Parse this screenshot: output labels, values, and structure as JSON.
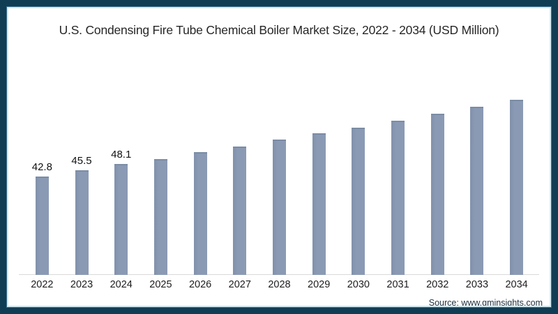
{
  "title": "U.S. Condensing Fire Tube Chemical Boiler Market Size, 2022 - 2034 (USD Million)",
  "source": "Source: www.gminsights.com",
  "chart_data": {
    "type": "bar",
    "title": "U.S. Condensing Fire Tube Chemical Boiler Market Size, 2022 - 2034 (USD Million)",
    "xlabel": "",
    "ylabel": "",
    "categories": [
      "2022",
      "2023",
      "2024",
      "2025",
      "2026",
      "2027",
      "2028",
      "2029",
      "2030",
      "2031",
      "2032",
      "2033",
      "2034"
    ],
    "values": [
      42.8,
      45.5,
      48.1,
      50.4,
      53.3,
      55.7,
      58.7,
      61.4,
      64.0,
      67.1,
      70.0,
      73.0,
      76.0
    ],
    "data_labels": [
      "42.8",
      "45.5",
      "48.1",
      "",
      "",
      "",
      "",
      "",
      "",
      "",
      "",
      "",
      ""
    ],
    "grid": false,
    "legend": false,
    "y_axis_shown": false,
    "source": "Source: www.gminsights.com",
    "colors": {
      "bar": "#8b9ab4",
      "bar_edge": "#8191ab",
      "bar_cap": "#7b8ca4",
      "axis_line": "#d9d9d9",
      "frame_border": "#113d54",
      "frame_mid_line": "#356e88",
      "frame_inner_line": "#d6eaf0",
      "title_text": "#262626",
      "label_text": "#121212",
      "source_text": "#1f3040"
    }
  }
}
